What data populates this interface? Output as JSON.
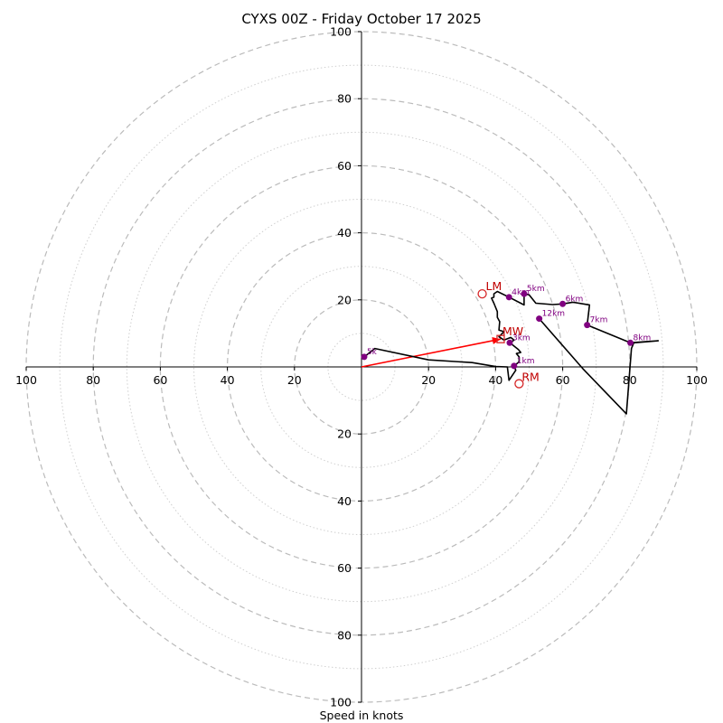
{
  "chart_data": {
    "type": "hodograph",
    "title": "CYXS 00Z - Friday October 17 2025",
    "xlabel": "Speed in knots",
    "range": [
      -100,
      100
    ],
    "ring_major": [
      20,
      40,
      60,
      80,
      100
    ],
    "ring_minor": [
      10,
      30,
      50,
      70,
      90
    ],
    "x_ticks": [
      {
        "value": -100,
        "label": "100"
      },
      {
        "value": -80,
        "label": "80"
      },
      {
        "value": -60,
        "label": "60"
      },
      {
        "value": -40,
        "label": "40"
      },
      {
        "value": -20,
        "label": "20"
      },
      {
        "value": 20,
        "label": "20"
      },
      {
        "value": 40,
        "label": "40"
      },
      {
        "value": 60,
        "label": "60"
      },
      {
        "value": 80,
        "label": "80"
      },
      {
        "value": 100,
        "label": "100"
      }
    ],
    "y_ticks": [
      {
        "value": 100,
        "label": "100"
      },
      {
        "value": 80,
        "label": "80"
      },
      {
        "value": 60,
        "label": "60"
      },
      {
        "value": 40,
        "label": "40"
      },
      {
        "value": 20,
        "label": "20"
      },
      {
        "value": -20,
        "label": "20"
      },
      {
        "value": -40,
        "label": "40"
      },
      {
        "value": -60,
        "label": "60"
      },
      {
        "value": -80,
        "label": "80"
      },
      {
        "value": -100,
        "label": "100"
      }
    ],
    "trace": [
      [
        0.8,
        3.0
      ],
      [
        4,
        5.5
      ],
      [
        20,
        2.1
      ],
      [
        33,
        1.3
      ],
      [
        40,
        0.1
      ],
      [
        43.5,
        0.0
      ],
      [
        44,
        -4
      ],
      [
        46,
        -1
      ],
      [
        45.5,
        0.3
      ],
      [
        47,
        1.5
      ],
      [
        47,
        3.0
      ],
      [
        46.2,
        4.0
      ],
      [
        47.5,
        4.3
      ],
      [
        46.8,
        5.2
      ],
      [
        45,
        6.6
      ],
      [
        44.2,
        7.2
      ],
      [
        45.5,
        8.0
      ],
      [
        44.5,
        8.8
      ],
      [
        42.5,
        8.0
      ],
      [
        41,
        9.0
      ],
      [
        42.5,
        10.5
      ],
      [
        41,
        11.0
      ],
      [
        41.2,
        13.5
      ],
      [
        40.5,
        14.8
      ],
      [
        40.5,
        16.5
      ],
      [
        39.5,
        19.0
      ],
      [
        38.8,
        20.5
      ],
      [
        39.5,
        20.8
      ],
      [
        39.5,
        21.8
      ],
      [
        40.5,
        22.5
      ],
      [
        44,
        20.8
      ],
      [
        47.5,
        19.0
      ],
      [
        48.5,
        18.5
      ],
      [
        48.5,
        21.8
      ],
      [
        50.0,
        21.5
      ],
      [
        52,
        19.0
      ],
      [
        57,
        18.6
      ],
      [
        60,
        18.8
      ],
      [
        63,
        19.3
      ],
      [
        68,
        18.5
      ],
      [
        67.3,
        12.5
      ],
      [
        80.2,
        7.2
      ],
      [
        80,
        7.2
      ],
      [
        88.5,
        7.8
      ],
      [
        81.2,
        7.2
      ],
      [
        80.5,
        5.5
      ],
      [
        79,
        -14.0
      ],
      [
        66,
        -0.5
      ],
      [
        53,
        14.4
      ]
    ],
    "height_markers": [
      {
        "label": "5k",
        "u": 0.8,
        "v": 3.0
      },
      {
        "label": "1km",
        "u": 45.5,
        "v": 0.3
      },
      {
        "label": "3km",
        "u": 44.2,
        "v": 7.2
      },
      {
        "label": "4km",
        "u": 44.0,
        "v": 20.8
      },
      {
        "label": "5km",
        "u": 48.5,
        "v": 21.8
      },
      {
        "label": "6km",
        "u": 60.0,
        "v": 18.8
      },
      {
        "label": "7km",
        "u": 67.3,
        "v": 12.5
      },
      {
        "label": "8km",
        "u": 80.2,
        "v": 7.2
      },
      {
        "label": "12km",
        "u": 53.0,
        "v": 14.4
      }
    ],
    "motion": {
      "lm": {
        "label": "LM",
        "u": 36.0,
        "v": 21.8
      },
      "rm": {
        "label": "RM",
        "u": 47.0,
        "v": -5.0
      },
      "mw": {
        "label": "MW",
        "u": 41.5,
        "v": 8.3
      }
    },
    "colors": {
      "trace": "#000000",
      "marker": "#800080",
      "motion": "#d62728",
      "shear_vector": "#ff0000",
      "grid": "#bbbbbb"
    }
  }
}
